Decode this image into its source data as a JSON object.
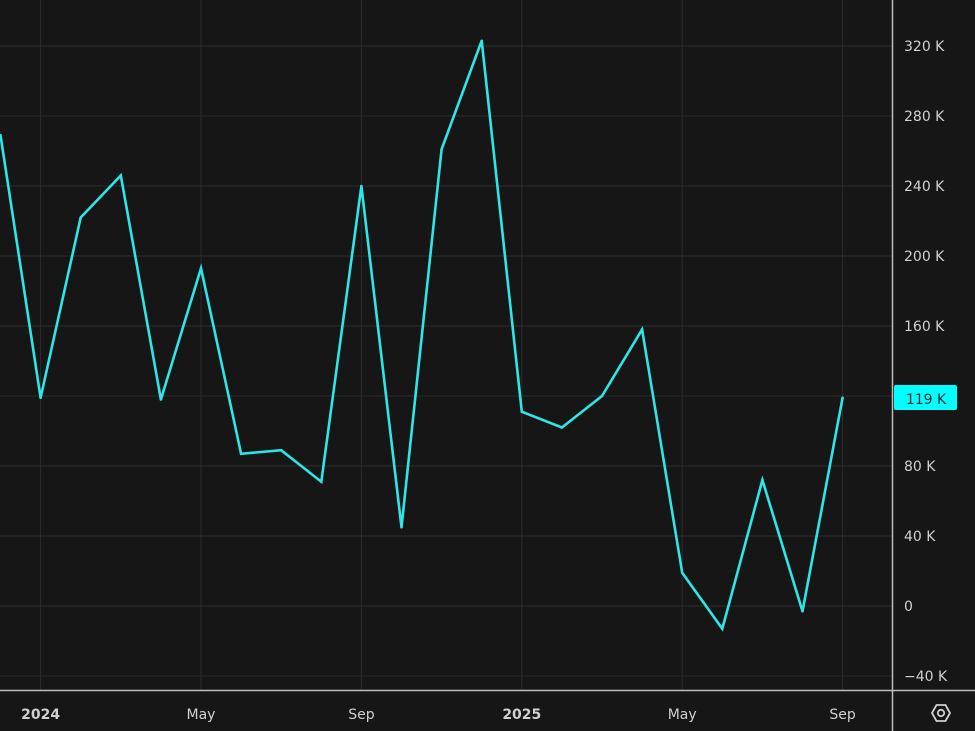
{
  "chart_data": {
    "type": "line",
    "title": "",
    "xlabel": "",
    "ylabel": "",
    "x": [
      "2023-12",
      "2024-01",
      "2024-02",
      "2024-03",
      "2024-04",
      "2024-05",
      "2024-06",
      "2024-07",
      "2024-08",
      "2024-09",
      "2024-10",
      "2024-11",
      "2024-12",
      "2025-01",
      "2025-02",
      "2025-03",
      "2025-04",
      "2025-05",
      "2025-06",
      "2025-07",
      "2025-08",
      "2025-09"
    ],
    "values": [
      269000,
      119000,
      222000,
      246000,
      118000,
      193000,
      87000,
      89000,
      71000,
      240000,
      45000,
      261000,
      323000,
      111000,
      102000,
      120000,
      158000,
      19000,
      -13000,
      72000,
      -3000,
      119000
    ],
    "ylim": [
      -48000,
      346000
    ],
    "y_ticks": [
      -40000,
      0,
      40000,
      80000,
      160000,
      200000,
      240000,
      280000,
      320000
    ],
    "y_tick_labels": [
      "−40 K",
      "0",
      "40 K",
      "80 K",
      "160 K",
      "200 K",
      "240 K",
      "280 K",
      "320 K"
    ],
    "x_tick_labels": [
      {
        "label": "2024",
        "at": "2024-01",
        "bold": true
      },
      {
        "label": "May",
        "at": "2024-05",
        "bold": false
      },
      {
        "label": "Sep",
        "at": "2024-09",
        "bold": false
      },
      {
        "label": "2025",
        "at": "2025-01",
        "bold": true
      },
      {
        "label": "May",
        "at": "2025-05",
        "bold": false
      },
      {
        "label": "Sep",
        "at": "2025-09",
        "bold": false
      }
    ],
    "last_value_label": "119 K",
    "grid": true,
    "line_color": "#2ee6e6",
    "label_bg": "#00ffff",
    "background": "#161616"
  },
  "toolbar": {
    "settings_icon": "settings-hexagon-icon"
  }
}
